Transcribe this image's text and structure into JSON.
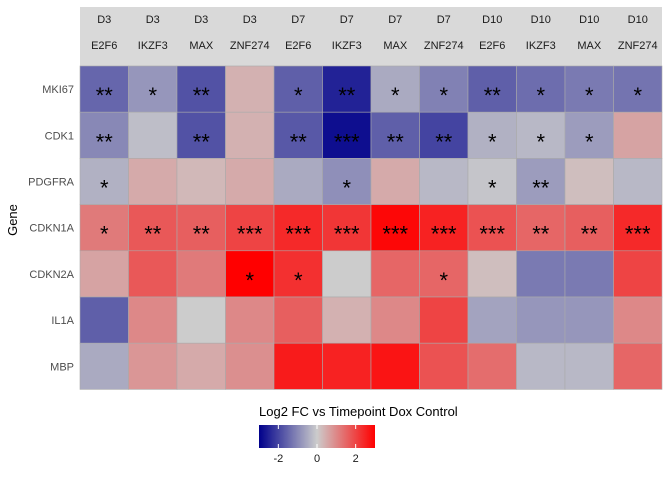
{
  "chart_data": {
    "type": "heatmap",
    "ylabel": "Gene",
    "columns": [
      {
        "timepoint": "D3",
        "tf": "E2F6"
      },
      {
        "timepoint": "D3",
        "tf": "IKZF3"
      },
      {
        "timepoint": "D3",
        "tf": "MAX"
      },
      {
        "timepoint": "D3",
        "tf": "ZNF274"
      },
      {
        "timepoint": "D7",
        "tf": "E2F6"
      },
      {
        "timepoint": "D7",
        "tf": "IKZF3"
      },
      {
        "timepoint": "D7",
        "tf": "MAX"
      },
      {
        "timepoint": "D7",
        "tf": "ZNF274"
      },
      {
        "timepoint": "D10",
        "tf": "E2F6"
      },
      {
        "timepoint": "D10",
        "tf": "IKZF3"
      },
      {
        "timepoint": "D10",
        "tf": "MAX"
      },
      {
        "timepoint": "D10",
        "tf": "ZNF274"
      }
    ],
    "rows": [
      "MKI67",
      "CDK1",
      "PDGFRA",
      "CDKN1A",
      "CDKN2A",
      "IL1A",
      "MBP"
    ],
    "values": [
      [
        -1.5,
        -0.8,
        -1.8,
        0.4,
        -1.6,
        -2.5,
        -0.5,
        -1.1,
        -1.6,
        -1.4,
        -1.2,
        -1.3
      ],
      [
        -1.0,
        -0.2,
        -1.8,
        0.4,
        -1.7,
        -2.8,
        -1.6,
        -2.0,
        -0.4,
        -0.3,
        -0.7,
        0.6
      ],
      [
        -0.4,
        0.5,
        0.3,
        0.5,
        -0.5,
        -0.9,
        0.5,
        -0.3,
        -0.1,
        -0.7,
        0.2,
        -0.3
      ],
      [
        1.2,
        1.7,
        1.6,
        2.0,
        2.4,
        2.2,
        2.9,
        2.5,
        1.8,
        1.5,
        1.6,
        2.4
      ],
      [
        0.6,
        1.7,
        1.2,
        3.0,
        2.3,
        0.0,
        1.5,
        1.5,
        0.2,
        -1.2,
        -1.2,
        2.0
      ],
      [
        -1.6,
        1.0,
        0.0,
        1.0,
        1.6,
        0.4,
        1.0,
        2.0,
        -0.6,
        -0.8,
        -0.8,
        1.0
      ],
      [
        -0.5,
        0.8,
        0.5,
        0.9,
        2.6,
        2.5,
        2.7,
        1.8,
        1.4,
        -0.3,
        -0.3,
        1.5
      ]
    ],
    "significance": [
      [
        "**",
        "*",
        "**",
        "",
        "*",
        "**",
        "*",
        "*",
        "**",
        "*",
        "*",
        "*"
      ],
      [
        "**",
        "",
        "**",
        "",
        "**",
        "***",
        "**",
        "**",
        "*",
        "*",
        "*",
        ""
      ],
      [
        "*",
        "",
        "",
        "",
        "",
        "*",
        "",
        "",
        "*",
        "**",
        "",
        ""
      ],
      [
        "*",
        "**",
        "**",
        "***",
        "***",
        "***",
        "***",
        "***",
        "***",
        "**",
        "**",
        "***"
      ],
      [
        "",
        "",
        "",
        "*",
        "*",
        "",
        "",
        "*",
        "",
        "",
        "",
        ""
      ],
      [
        "",
        "",
        "",
        "",
        "",
        "",
        "",
        "",
        "",
        "",
        "",
        ""
      ],
      [
        "",
        "",
        "",
        "",
        "",
        "",
        "",
        "",
        "",
        "",
        "",
        ""
      ]
    ],
    "legend": {
      "title": "Log2 FC vs Timepoint Dox Control",
      "placement": "bottom",
      "range": [
        -3,
        3
      ],
      "ticks": [
        -2,
        0,
        2
      ],
      "colors": {
        "low": "#00008b",
        "mid": "#cccccc",
        "high": "#ff0000"
      }
    },
    "colors": {
      "strip_bg": "#d9d9d9",
      "tile_border": "#aaaaaa"
    }
  }
}
